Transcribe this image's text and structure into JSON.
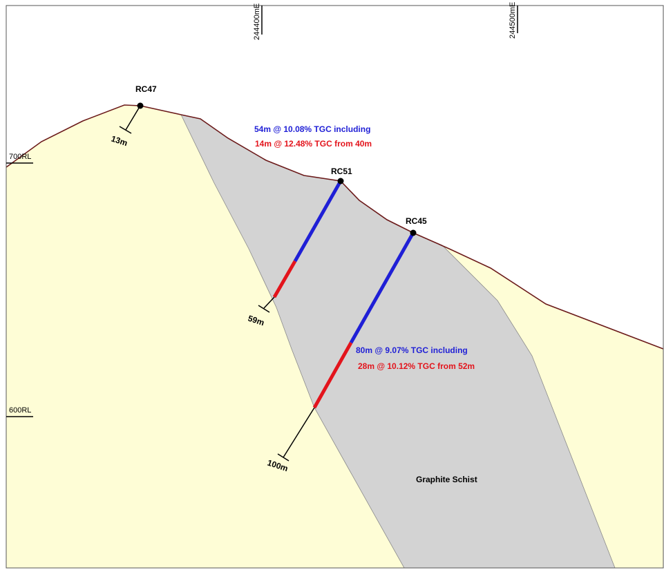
{
  "easting_labels": {
    "e1": "244400mE",
    "e2": "244500mE"
  },
  "rl_labels": {
    "r700": "700RL",
    "r600": "600RL"
  },
  "holes": {
    "rc47": {
      "name": "RC47",
      "depth": "13m"
    },
    "rc51": {
      "name": "RC51",
      "depth": "59m",
      "intercept": "54m @ 10.08% TGC including",
      "sub_intercept": "14m @ 12.48% TGC from 40m"
    },
    "rc45": {
      "name": "RC45",
      "depth": "100m",
      "intercept": "80m @ 9.07% TGC including",
      "sub_intercept": "28m @ 10.12% TGC from 52m"
    }
  },
  "units": {
    "graphite_schist": "Graphite Schist"
  },
  "colors": {
    "host_rock": "#fefdd6",
    "graphite_schist": "#d3d3d3",
    "topography": "#6b1a1a",
    "main_intercept": "#1f1fd6",
    "high_grade_intercept": "#e3141c"
  }
}
